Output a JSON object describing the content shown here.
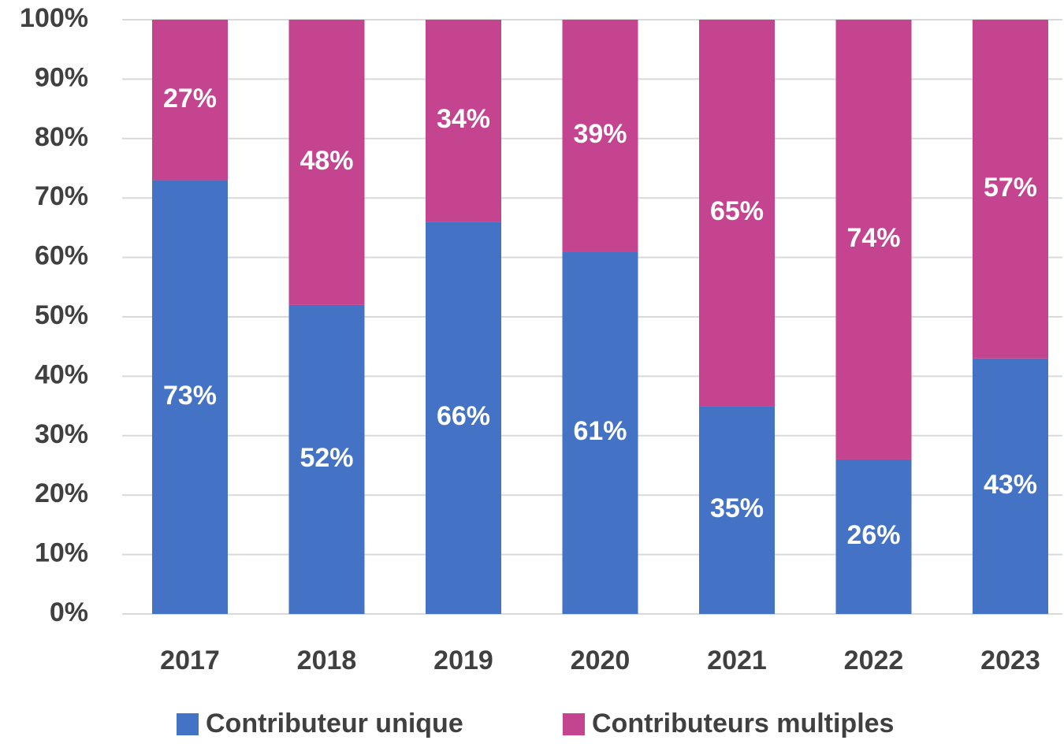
{
  "chart_data": {
    "type": "stacked_bar",
    "categories": [
      "2017",
      "2018",
      "2019",
      "2020",
      "2021",
      "2022",
      "2023"
    ],
    "series": [
      {
        "name": "Contributeur unique",
        "color": "#4472c4",
        "values": [
          73,
          52,
          66,
          61,
          35,
          26,
          43
        ],
        "value_labels": [
          "73%",
          "52%",
          "66%",
          "61%",
          "35%",
          "26%",
          "43%"
        ]
      },
      {
        "name": "Contributeurs multiples",
        "color": "#c5448f",
        "values": [
          27,
          48,
          34,
          39,
          65,
          74,
          57
        ],
        "value_labels": [
          "27%",
          "48%",
          "34%",
          "39%",
          "65%",
          "74%",
          "57%"
        ]
      }
    ],
    "ylim": [
      0,
      100
    ],
    "yticks": [
      {
        "value": 0,
        "label": "0%"
      },
      {
        "value": 10,
        "label": "10%"
      },
      {
        "value": 20,
        "label": "20%"
      },
      {
        "value": 30,
        "label": "30%"
      },
      {
        "value": 40,
        "label": "40%"
      },
      {
        "value": 50,
        "label": "50%"
      },
      {
        "value": 60,
        "label": "60%"
      },
      {
        "value": 70,
        "label": "70%"
      },
      {
        "value": 80,
        "label": "80%"
      },
      {
        "value": 90,
        "label": "90%"
      },
      {
        "value": 100,
        "label": "100%"
      }
    ],
    "grid": true,
    "legend": "bottom"
  }
}
